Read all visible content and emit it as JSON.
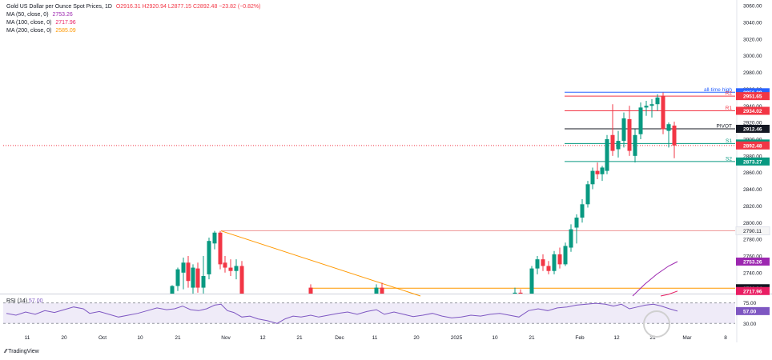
{
  "legend": {
    "title": "Gold US Dollar per Ounce Spot Prices, 1D",
    "ohlc": "O2916.31 H2920.94 L2877.15 C2892.48 −23.82 (−0.82%)",
    "ma50_label": "MA (50, close, 0)",
    "ma50_value": "2753.26",
    "ma100_label": "MA (100, close, 0)",
    "ma100_value": "2717.96",
    "ma200_label": "MA (200, close, 0)",
    "ma200_value": "2585.09",
    "rsi_label": "RSI (14)",
    "rsi_value": "57.00"
  },
  "brand": "TradingView",
  "colors": {
    "up": "#089981",
    "down": "#f23645",
    "ma50": "#9c27b0",
    "ma100": "#e91e63",
    "ma200": "#ff9800",
    "pivot": "#131722",
    "resistance": "#f23645",
    "support": "#089981",
    "ath": "#2962ff",
    "rsi": "#7e57c2",
    "trend": "#ff9800"
  },
  "chart_data": {
    "type": "candlestick",
    "timeframe": "1D",
    "y_axis_ticks": [
      3060,
      3040,
      3020,
      3000,
      2980,
      2960,
      2940,
      2920,
      2900,
      2880,
      2860,
      2840,
      2820,
      2800,
      2780,
      2760,
      2740
    ],
    "ylim": [
      2712,
      3064
    ],
    "x_axis_ticks": [
      "11",
      "20",
      "Oct",
      "10",
      "21",
      "Nov",
      "12",
      "21",
      "Dec",
      "11",
      "20",
      "2025",
      "10",
      "21",
      "Feb",
      "12",
      "21",
      "Mar",
      "8"
    ],
    "levels": [
      {
        "name": "all-time high",
        "value": 2956.29,
        "label": "all-time high",
        "price": "2956.29",
        "color": "#2962ff"
      },
      {
        "name": "R2",
        "value": 2951.65,
        "label": "R2",
        "price": "2951.65",
        "color": "#f23645"
      },
      {
        "name": "R1",
        "value": 2934.02,
        "label": "R1",
        "price": "2934.02",
        "color": "#f23645"
      },
      {
        "name": "PIVOT",
        "value": 2912.46,
        "label": "PIVOT",
        "price": "2912.46",
        "color": "#131722"
      },
      {
        "name": "S1",
        "value": 2894.83,
        "label": "S1",
        "price": "2894.83",
        "color": "#089981"
      },
      {
        "name": "S2",
        "value": 2873.27,
        "label": "S2",
        "price": "2873.27",
        "color": "#089981"
      }
    ],
    "last_price": {
      "value": 2892.48,
      "price": "2892.48",
      "color": "#f23645"
    },
    "horizontal_lines": [
      {
        "value": 2790.11,
        "price": "2790.11",
        "color": "#ef9a9a"
      },
      {
        "value": 2721.34,
        "price": "2721.34",
        "color": "#ff9800"
      }
    ],
    "ma_tags": [
      {
        "value": 2753.26,
        "price": "2753.26",
        "color": "#9c27b0"
      },
      {
        "value": 2717.96,
        "price": "2717.96",
        "color": "#e91e63"
      }
    ],
    "trendline": [
      {
        "x": 276,
        "y": 2790.11
      },
      {
        "x": 525,
        "y": 2712
      }
    ],
    "candles": [
      {
        "x": 215,
        "o": 2714,
        "h": 2725,
        "l": 2712,
        "c": 2724
      },
      {
        "x": 222,
        "o": 2724,
        "h": 2746,
        "l": 2718,
        "c": 2744
      },
      {
        "x": 229,
        "o": 2740,
        "h": 2758,
        "l": 2720,
        "c": 2752
      },
      {
        "x": 235,
        "o": 2752,
        "h": 2760,
        "l": 2722,
        "c": 2730
      },
      {
        "x": 241,
        "o": 2722,
        "h": 2750,
        "l": 2712,
        "c": 2746
      },
      {
        "x": 247,
        "o": 2745,
        "h": 2752,
        "l": 2716,
        "c": 2722
      },
      {
        "x": 254,
        "o": 2722,
        "h": 2760,
        "l": 2715,
        "c": 2736
      },
      {
        "x": 261,
        "o": 2738,
        "h": 2782,
        "l": 2732,
        "c": 2778
      },
      {
        "x": 268,
        "o": 2775,
        "h": 2790,
        "l": 2768,
        "c": 2788
      },
      {
        "x": 275,
        "o": 2788,
        "h": 2790,
        "l": 2744,
        "c": 2750
      },
      {
        "x": 281,
        "o": 2752,
        "h": 2760,
        "l": 2740,
        "c": 2746
      },
      {
        "x": 288,
        "o": 2746,
        "h": 2756,
        "l": 2736,
        "c": 2742
      },
      {
        "x": 295,
        "o": 2742,
        "h": 2756,
        "l": 2732,
        "c": 2748
      },
      {
        "x": 302,
        "o": 2748,
        "h": 2754,
        "l": 2712,
        "c": 2712
      },
      {
        "x": 388,
        "o": 2722,
        "h": 2726,
        "l": 2713,
        "c": 2714
      },
      {
        "x": 470,
        "o": 2714,
        "h": 2726,
        "l": 2712,
        "c": 2722
      },
      {
        "x": 477,
        "o": 2722,
        "h": 2728,
        "l": 2712,
        "c": 2714
      },
      {
        "x": 643,
        "o": 2714,
        "h": 2722,
        "l": 2712,
        "c": 2716
      },
      {
        "x": 650,
        "o": 2716,
        "h": 2720,
        "l": 2712,
        "c": 2714
      },
      {
        "x": 664,
        "o": 2714,
        "h": 2748,
        "l": 2712,
        "c": 2745
      },
      {
        "x": 671,
        "o": 2745,
        "h": 2760,
        "l": 2738,
        "c": 2756
      },
      {
        "x": 678,
        "o": 2756,
        "h": 2762,
        "l": 2742,
        "c": 2748
      },
      {
        "x": 685,
        "o": 2748,
        "h": 2754,
        "l": 2738,
        "c": 2742
      },
      {
        "x": 692,
        "o": 2742,
        "h": 2766,
        "l": 2738,
        "c": 2762
      },
      {
        "x": 699,
        "o": 2762,
        "h": 2770,
        "l": 2745,
        "c": 2750
      },
      {
        "x": 706,
        "o": 2750,
        "h": 2776,
        "l": 2748,
        "c": 2772
      },
      {
        "x": 713,
        "o": 2770,
        "h": 2798,
        "l": 2765,
        "c": 2792
      },
      {
        "x": 720,
        "o": 2794,
        "h": 2810,
        "l": 2775,
        "c": 2806
      },
      {
        "x": 727,
        "o": 2806,
        "h": 2828,
        "l": 2800,
        "c": 2822
      },
      {
        "x": 734,
        "o": 2822,
        "h": 2850,
        "l": 2818,
        "c": 2846
      },
      {
        "x": 740,
        "o": 2846,
        "h": 2866,
        "l": 2840,
        "c": 2862
      },
      {
        "x": 746,
        "o": 2862,
        "h": 2872,
        "l": 2852,
        "c": 2858
      },
      {
        "x": 752,
        "o": 2858,
        "h": 2868,
        "l": 2850,
        "c": 2866
      },
      {
        "x": 758,
        "o": 2862,
        "h": 2905,
        "l": 2858,
        "c": 2900
      },
      {
        "x": 765,
        "o": 2905,
        "h": 2942,
        "l": 2880,
        "c": 2886
      },
      {
        "x": 772,
        "o": 2888,
        "h": 2910,
        "l": 2878,
        "c": 2898
      },
      {
        "x": 779,
        "o": 2898,
        "h": 2932,
        "l": 2890,
        "c": 2925
      },
      {
        "x": 786,
        "o": 2924,
        "h": 2940,
        "l": 2880,
        "c": 2886
      },
      {
        "x": 793,
        "o": 2880,
        "h": 2912,
        "l": 2872,
        "c": 2905
      },
      {
        "x": 800,
        "o": 2906,
        "h": 2944,
        "l": 2900,
        "c": 2938
      },
      {
        "x": 807,
        "o": 2938,
        "h": 2946,
        "l": 2928,
        "c": 2940
      },
      {
        "x": 814,
        "o": 2940,
        "h": 2948,
        "l": 2926,
        "c": 2942
      },
      {
        "x": 821,
        "o": 2942,
        "h": 2954,
        "l": 2934,
        "c": 2950
      },
      {
        "x": 828,
        "o": 2952,
        "h": 2956,
        "l": 2906,
        "c": 2912
      },
      {
        "x": 835,
        "o": 2910,
        "h": 2920,
        "l": 2890,
        "c": 2918
      },
      {
        "x": 842,
        "o": 2916.31,
        "h": 2920.94,
        "l": 2877.15,
        "c": 2892.48
      }
    ],
    "ma50": [
      [
        790,
        2712
      ],
      [
        805,
        2726
      ],
      [
        820,
        2738
      ],
      [
        835,
        2748
      ],
      [
        846,
        2753.26
      ]
    ],
    "ma100": [
      [
        825,
        2712
      ],
      [
        835,
        2714
      ],
      [
        846,
        2717.96
      ]
    ],
    "rsi": {
      "ticks": [
        "75.00",
        "30.00"
      ],
      "last": 57.0,
      "values": [
        [
          8,
          52
        ],
        [
          20,
          48
        ],
        [
          32,
          55
        ],
        [
          44,
          50
        ],
        [
          56,
          58
        ],
        [
          68,
          54
        ],
        [
          80,
          60
        ],
        [
          92,
          66
        ],
        [
          104,
          62
        ],
        [
          112,
          52
        ],
        [
          124,
          56
        ],
        [
          136,
          50
        ],
        [
          148,
          44
        ],
        [
          160,
          48
        ],
        [
          172,
          52
        ],
        [
          184,
          58
        ],
        [
          196,
          64
        ],
        [
          208,
          60
        ],
        [
          218,
          62
        ],
        [
          228,
          68
        ],
        [
          238,
          60
        ],
        [
          248,
          58
        ],
        [
          258,
          62
        ],
        [
          268,
          70
        ],
        [
          276,
          72
        ],
        [
          284,
          58
        ],
        [
          292,
          54
        ],
        [
          302,
          44
        ],
        [
          312,
          46
        ],
        [
          322,
          40
        ],
        [
          334,
          36
        ],
        [
          346,
          30
        ],
        [
          356,
          40
        ],
        [
          366,
          46
        ],
        [
          376,
          44
        ],
        [
          388,
          48
        ],
        [
          398,
          44
        ],
        [
          410,
          48
        ],
        [
          422,
          52
        ],
        [
          434,
          55
        ],
        [
          446,
          50
        ],
        [
          458,
          56
        ],
        [
          470,
          60
        ],
        [
          480,
          50
        ],
        [
          492,
          55
        ],
        [
          504,
          50
        ],
        [
          516,
          45
        ],
        [
          528,
          48
        ],
        [
          540,
          52
        ],
        [
          552,
          46
        ],
        [
          564,
          42
        ],
        [
          576,
          44
        ],
        [
          588,
          48
        ],
        [
          600,
          46
        ],
        [
          612,
          50
        ],
        [
          624,
          52
        ],
        [
          636,
          48
        ],
        [
          648,
          44
        ],
        [
          660,
          58
        ],
        [
          672,
          62
        ],
        [
          684,
          58
        ],
        [
          696,
          64
        ],
        [
          708,
          66
        ],
        [
          720,
          70
        ],
        [
          732,
          72
        ],
        [
          744,
          74
        ],
        [
          756,
          72
        ],
        [
          766,
          68
        ],
        [
          776,
          72
        ],
        [
          786,
          62
        ],
        [
          796,
          66
        ],
        [
          806,
          70
        ],
        [
          816,
          72
        ],
        [
          826,
          68
        ],
        [
          836,
          62
        ],
        [
          846,
          57
        ]
      ]
    }
  }
}
